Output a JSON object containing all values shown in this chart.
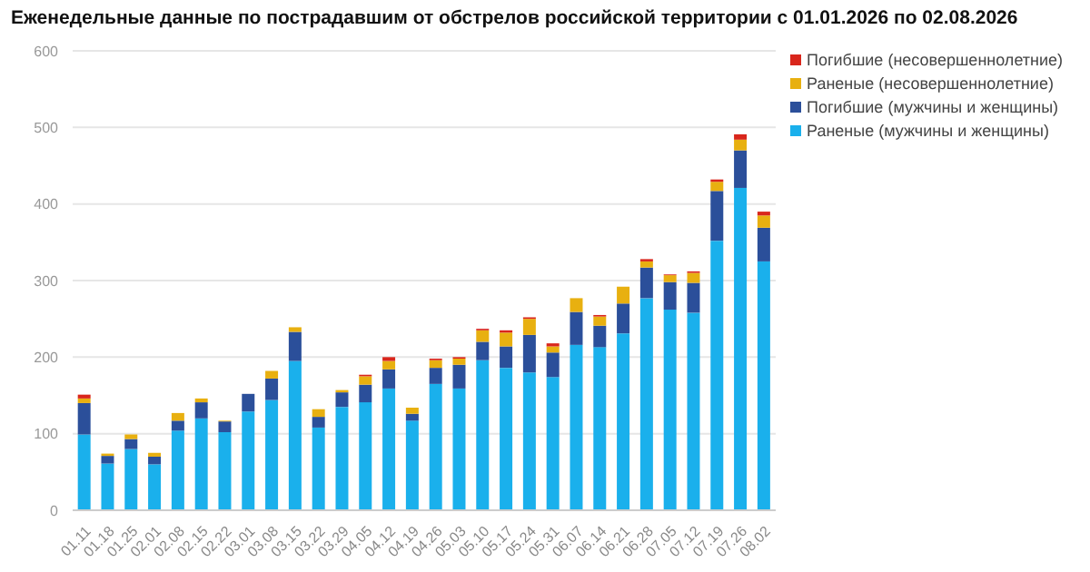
{
  "chart_data": {
    "type": "bar",
    "stacked": true,
    "title": "Еженедельные данные по пострадавшим от обстрелов российской территории с 01.01.2026 по 02.08.2026",
    "categories": [
      "01.11",
      "01.18",
      "01.25",
      "02.01",
      "02.08",
      "02.15",
      "02.22",
      "03.01",
      "03.08",
      "03.15",
      "03.22",
      "03.29",
      "04.05",
      "04.12",
      "04.19",
      "04.26",
      "05.03",
      "05.10",
      "05.17",
      "05.24",
      "05.31",
      "06.07",
      "06.14",
      "06.21",
      "06.28",
      "07.05",
      "07.12",
      "07.19",
      "07.26",
      "08.02"
    ],
    "series": [
      {
        "name": "Раненые (мужчины и женщины)",
        "color": "#1ab0ec",
        "values": [
          99,
          61,
          80,
          60,
          104,
          120,
          102,
          129,
          144,
          195,
          108,
          135,
          141,
          159,
          117,
          165,
          159,
          196,
          186,
          180,
          174,
          216,
          213,
          231,
          277,
          262,
          258,
          352,
          421,
          325
        ]
      },
      {
        "name": "Погибшие (мужчины и женщины)",
        "color": "#2b4f9a",
        "values": [
          41,
          10,
          13,
          10,
          13,
          21,
          14,
          23,
          28,
          38,
          14,
          19,
          23,
          25,
          9,
          21,
          31,
          24,
          28,
          49,
          32,
          43,
          28,
          39,
          40,
          36,
          39,
          65,
          49,
          44
        ]
      },
      {
        "name": "Раненые (несовершеннолетние)",
        "color": "#e8b010",
        "values": [
          6,
          3,
          6,
          5,
          10,
          5,
          1,
          0,
          10,
          6,
          10,
          3,
          11,
          11,
          8,
          10,
          8,
          15,
          18,
          21,
          8,
          18,
          12,
          22,
          8,
          9,
          13,
          12,
          14,
          16
        ]
      },
      {
        "name": "Погибшие (несовершеннолетние)",
        "color": "#d9261c",
        "values": [
          5,
          0,
          0,
          0,
          0,
          0,
          0,
          0,
          0,
          0,
          0,
          0,
          2,
          5,
          0,
          2,
          2,
          2,
          3,
          2,
          4,
          0,
          2,
          0,
          3,
          1,
          2,
          3,
          7,
          5
        ]
      }
    ],
    "ylim": [
      0,
      600
    ],
    "yticks": [
      0,
      100,
      200,
      300,
      400,
      500,
      600
    ],
    "grid": "y",
    "legend": "top right"
  }
}
